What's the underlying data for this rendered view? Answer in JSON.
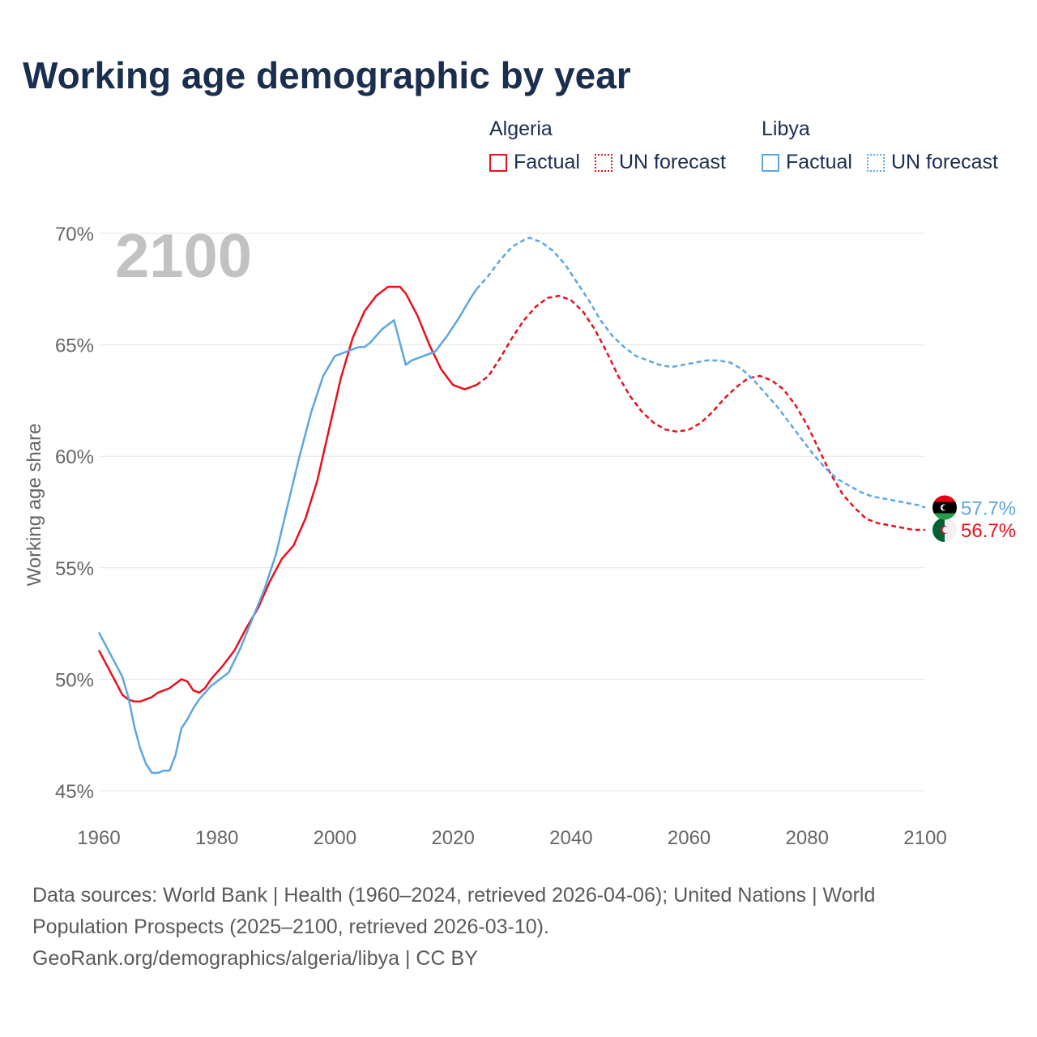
{
  "title": "Working age demographic by year",
  "legend": {
    "algeria": {
      "name": "Algeria",
      "factual": "Factual",
      "forecast": "UN forecast"
    },
    "libya": {
      "name": "Libya",
      "factual": "Factual",
      "forecast": "UN forecast"
    }
  },
  "colors": {
    "algeria": "#e8111b",
    "libya": "#5ba7e3",
    "grid": "#e6e6e6",
    "axis_text": "#666666",
    "year_watermark": "#c2c2c2",
    "title": "#1a2e50"
  },
  "footer": {
    "line1": "Data sources: World Bank | Health (1960–2024, retrieved 2026-04-06); United Nations | World Population Prospects (2025–2100, retrieved 2026-03-10).",
    "line2": "GeoRank.org/demographics/algeria/libya | CC BY"
  },
  "chart_data": {
    "type": "line",
    "title": "Working age demographic by year",
    "year_label": "2100",
    "ylabel": "Working age share",
    "xlabel": "",
    "xlim": [
      1960,
      2100
    ],
    "ylim": [
      45,
      70
    ],
    "x_ticks": [
      1960,
      1980,
      2000,
      2020,
      2040,
      2060,
      2080,
      2100
    ],
    "y_ticks": [
      45,
      50,
      55,
      60,
      65,
      70
    ],
    "y_tick_labels": [
      "45%",
      "50%",
      "55%",
      "60%",
      "65%",
      "70%"
    ],
    "factual_until": 2024,
    "series": [
      {
        "name": "Algeria",
        "end_label": "56.7%",
        "flag": "algeria-flag-icon",
        "points": [
          [
            1960,
            51.3
          ],
          [
            1962,
            50.3
          ],
          [
            1964,
            49.3
          ],
          [
            1965,
            49.1
          ],
          [
            1966,
            49.0
          ],
          [
            1967,
            49.0
          ],
          [
            1969,
            49.2
          ],
          [
            1970,
            49.4
          ],
          [
            1972,
            49.6
          ],
          [
            1974,
            50.0
          ],
          [
            1975,
            49.9
          ],
          [
            1976,
            49.5
          ],
          [
            1977,
            49.4
          ],
          [
            1978,
            49.6
          ],
          [
            1979,
            50.0
          ],
          [
            1981,
            50.6
          ],
          [
            1983,
            51.3
          ],
          [
            1985,
            52.3
          ],
          [
            1987,
            53.2
          ],
          [
            1989,
            54.4
          ],
          [
            1991,
            55.4
          ],
          [
            1993,
            56.0
          ],
          [
            1995,
            57.2
          ],
          [
            1997,
            58.9
          ],
          [
            1999,
            61.2
          ],
          [
            2001,
            63.5
          ],
          [
            2003,
            65.3
          ],
          [
            2005,
            66.5
          ],
          [
            2007,
            67.2
          ],
          [
            2009,
            67.6
          ],
          [
            2011,
            67.6
          ],
          [
            2012,
            67.3
          ],
          [
            2014,
            66.3
          ],
          [
            2016,
            65.0
          ],
          [
            2018,
            63.9
          ],
          [
            2020,
            63.2
          ],
          [
            2022,
            63.0
          ],
          [
            2024,
            63.2
          ],
          [
            2026,
            63.6
          ],
          [
            2028,
            64.4
          ],
          [
            2030,
            65.3
          ],
          [
            2032,
            66.1
          ],
          [
            2034,
            66.7
          ],
          [
            2036,
            67.1
          ],
          [
            2038,
            67.2
          ],
          [
            2040,
            67.0
          ],
          [
            2042,
            66.5
          ],
          [
            2044,
            65.7
          ],
          [
            2046,
            64.7
          ],
          [
            2048,
            63.6
          ],
          [
            2050,
            62.7
          ],
          [
            2052,
            62.0
          ],
          [
            2054,
            61.5
          ],
          [
            2056,
            61.2
          ],
          [
            2058,
            61.1
          ],
          [
            2060,
            61.2
          ],
          [
            2062,
            61.5
          ],
          [
            2064,
            62.0
          ],
          [
            2066,
            62.6
          ],
          [
            2068,
            63.1
          ],
          [
            2070,
            63.5
          ],
          [
            2072,
            63.6
          ],
          [
            2074,
            63.4
          ],
          [
            2076,
            63.0
          ],
          [
            2078,
            62.3
          ],
          [
            2080,
            61.4
          ],
          [
            2082,
            60.3
          ],
          [
            2084,
            59.2
          ],
          [
            2086,
            58.3
          ],
          [
            2088,
            57.7
          ],
          [
            2090,
            57.2
          ],
          [
            2092,
            57.0
          ],
          [
            2094,
            56.9
          ],
          [
            2096,
            56.8
          ],
          [
            2098,
            56.7
          ],
          [
            2100,
            56.7
          ]
        ]
      },
      {
        "name": "Libya",
        "end_label": "57.7%",
        "flag": "libya-flag-icon",
        "points": [
          [
            1960,
            52.1
          ],
          [
            1962,
            51.1
          ],
          [
            1964,
            50.1
          ],
          [
            1965,
            49.2
          ],
          [
            1966,
            47.9
          ],
          [
            1967,
            46.9
          ],
          [
            1968,
            46.2
          ],
          [
            1969,
            45.8
          ],
          [
            1970,
            45.8
          ],
          [
            1971,
            45.9
          ],
          [
            1972,
            45.9
          ],
          [
            1973,
            46.6
          ],
          [
            1974,
            47.8
          ],
          [
            1975,
            48.2
          ],
          [
            1976,
            48.7
          ],
          [
            1977,
            49.1
          ],
          [
            1979,
            49.7
          ],
          [
            1982,
            50.3
          ],
          [
            1984,
            51.4
          ],
          [
            1986,
            52.7
          ],
          [
            1988,
            54.0
          ],
          [
            1990,
            55.6
          ],
          [
            1992,
            57.8
          ],
          [
            1994,
            60.0
          ],
          [
            1996,
            62.0
          ],
          [
            1998,
            63.6
          ],
          [
            2000,
            64.5
          ],
          [
            2002,
            64.7
          ],
          [
            2004,
            64.9
          ],
          [
            2005,
            64.9
          ],
          [
            2006,
            65.1
          ],
          [
            2008,
            65.7
          ],
          [
            2010,
            66.1
          ],
          [
            2012,
            64.1
          ],
          [
            2013,
            64.3
          ],
          [
            2015,
            64.5
          ],
          [
            2017,
            64.7
          ],
          [
            2019,
            65.4
          ],
          [
            2021,
            66.2
          ],
          [
            2023,
            67.1
          ],
          [
            2024,
            67.5
          ],
          [
            2026,
            68.1
          ],
          [
            2028,
            68.8
          ],
          [
            2030,
            69.4
          ],
          [
            2032,
            69.7
          ],
          [
            2033,
            69.8
          ],
          [
            2035,
            69.6
          ],
          [
            2037,
            69.2
          ],
          [
            2039,
            68.6
          ],
          [
            2041,
            67.8
          ],
          [
            2043,
            67.0
          ],
          [
            2045,
            66.1
          ],
          [
            2047,
            65.4
          ],
          [
            2049,
            64.9
          ],
          [
            2051,
            64.5
          ],
          [
            2053,
            64.3
          ],
          [
            2055,
            64.1
          ],
          [
            2057,
            64.0
          ],
          [
            2059,
            64.1
          ],
          [
            2061,
            64.2
          ],
          [
            2063,
            64.3
          ],
          [
            2065,
            64.3
          ],
          [
            2067,
            64.2
          ],
          [
            2069,
            63.9
          ],
          [
            2071,
            63.4
          ],
          [
            2073,
            62.8
          ],
          [
            2075,
            62.2
          ],
          [
            2077,
            61.5
          ],
          [
            2079,
            60.8
          ],
          [
            2081,
            60.1
          ],
          [
            2083,
            59.5
          ],
          [
            2085,
            59.0
          ],
          [
            2087,
            58.7
          ],
          [
            2089,
            58.4
          ],
          [
            2091,
            58.2
          ],
          [
            2093,
            58.1
          ],
          [
            2095,
            58.0
          ],
          [
            2097,
            57.9
          ],
          [
            2099,
            57.8
          ],
          [
            2100,
            57.7
          ]
        ]
      }
    ]
  }
}
